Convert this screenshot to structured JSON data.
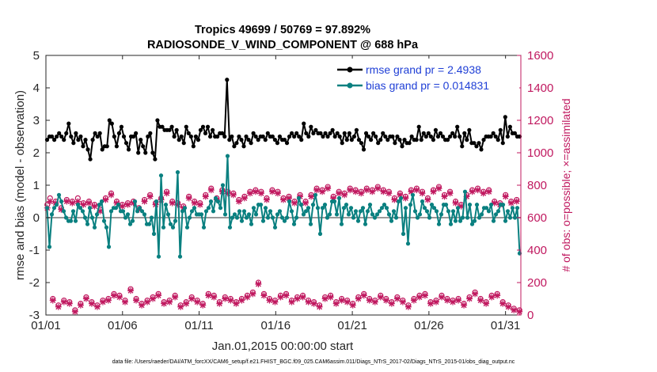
{
  "chart_data": {
    "type": "line",
    "title_line1": "Tropics 49699 / 50769 = 97.892%",
    "title_line2": "RADIOSONDE_V_WIND_COMPONENT @ 688 hPa",
    "xlabel": "Jan.01,2015 00:00:00 start",
    "ylabel_left": "rmse and bias (model - observation)",
    "ylabel_right": "# of obs: o=possible; ×=assimilated",
    "xlim": [
      0,
      31
    ],
    "ylim": [
      -3,
      5
    ],
    "ylim_right": [
      0,
      1600
    ],
    "x_ticks": [
      {
        "value": 0,
        "label": "01/01"
      },
      {
        "value": 5,
        "label": "01/06"
      },
      {
        "value": 10,
        "label": "01/11"
      },
      {
        "value": 15,
        "label": "01/16"
      },
      {
        "value": 20,
        "label": "01/21"
      },
      {
        "value": 25,
        "label": "01/26"
      },
      {
        "value": 30,
        "label": "01/31"
      }
    ],
    "y_ticks_left": [
      "-3",
      "-2",
      "-1",
      "0",
      "1",
      "2",
      "3",
      "4",
      "5"
    ],
    "y_ticks_right": [
      "0",
      "200",
      "400",
      "600",
      "800",
      "1000",
      "1200",
      "1400",
      "1600"
    ],
    "legend": [
      {
        "label": "rmse grand pr = 2.4938",
        "color": "#000000"
      },
      {
        "label": "bias grand pr = 0.014831",
        "color": "#0a8080"
      }
    ],
    "series": [
      {
        "name": "rmse",
        "color": "#000000",
        "axis": "left",
        "values": [
          2.4,
          2.5,
          2.5,
          2.4,
          2.5,
          2.6,
          2.5,
          2.4,
          2.6,
          2.9,
          2.5,
          2.3,
          2.6,
          2.4,
          2.5,
          2.2,
          2.4,
          2.1,
          1.8,
          2.4,
          2.6,
          2.5,
          2.6,
          2.1,
          2.2,
          2.2,
          3.0,
          2.9,
          2.5,
          2.2,
          2.6,
          2.8,
          2.5,
          2.3,
          2.1,
          2.5,
          2.5,
          2.6,
          2.0,
          2.4,
          2.2,
          2.0,
          2.5,
          2.6,
          2.0,
          1.8,
          3.0,
          2.8,
          2.8,
          2.7,
          2.7,
          2.7,
          2.8,
          2.5,
          2.7,
          2.4,
          2.5,
          2.3,
          2.8,
          2.6,
          2.5,
          2.2,
          2.5,
          2.4,
          2.7,
          2.8,
          2.6,
          2.8,
          2.5,
          2.7,
          2.5,
          2.5,
          2.6,
          2.6,
          2.5,
          4.25,
          2.4,
          2.5,
          2.2,
          2.3,
          2.5,
          2.4,
          2.2,
          2.5,
          2.4,
          2.3,
          2.6,
          2.5,
          2.4,
          2.5,
          2.5,
          2.4,
          2.6,
          2.5,
          2.5,
          2.4,
          2.3,
          2.5,
          2.4,
          2.4,
          2.3,
          2.5,
          2.6,
          2.5,
          2.6,
          2.5,
          2.4,
          2.9,
          2.6,
          2.5,
          2.8,
          2.6,
          2.7,
          2.6,
          2.6,
          2.5,
          2.6,
          2.5,
          2.6,
          2.7,
          2.5,
          2.6,
          2.5,
          2.3,
          2.6,
          2.4,
          2.6,
          2.4,
          2.5,
          2.7,
          2.4,
          2.3,
          2.1,
          2.6,
          2.5,
          2.4,
          2.6,
          2.5,
          2.3,
          2.4,
          2.6,
          2.5,
          2.4,
          2.5,
          2.5,
          2.3,
          2.5,
          2.4,
          2.2,
          2.4,
          2.3,
          2.3,
          2.5,
          2.4,
          2.4,
          2.8,
          2.4,
          2.6,
          2.5,
          2.6,
          2.5,
          2.4,
          2.7,
          2.5,
          2.6,
          2.5,
          2.4,
          2.4,
          2.5,
          2.6,
          2.5,
          2.8,
          2.5,
          2.2,
          2.6,
          2.4,
          2.7,
          2.3,
          2.3,
          2.2,
          2.3,
          2.1,
          2.4,
          2.5,
          2.5,
          2.5,
          2.6,
          2.5,
          2.4,
          2.7,
          2.3,
          3.1,
          2.5,
          2.8,
          2.6,
          2.6,
          2.5,
          2.5
        ]
      },
      {
        "name": "bias",
        "color": "#0a8080",
        "axis": "left",
        "values": [
          0.3,
          -0.9,
          0.1,
          0.3,
          0.4,
          0.7,
          0.5,
          0.2,
          0.0,
          -0.1,
          -0.1,
          0.2,
          -0.1,
          0.4,
          0.3,
          0.2,
          0.0,
          -0.2,
          0.3,
          0.0,
          -0.3,
          0.1,
          0.4,
          0.5,
          -0.1,
          -0.3,
          -0.9,
          0.2,
          0.3,
          0.3,
          0.4,
          0.2,
          0.2,
          0.0,
          0.1,
          -0.2,
          -0.1,
          0.5,
          0.2,
          0.3,
          0.2,
          0.1,
          -0.2,
          -0.2,
          0.0,
          -0.5,
          0.5,
          -1.2,
          1.3,
          -0.3,
          0.4,
          0.1,
          -0.2,
          -0.3,
          -0.1,
          1.4,
          -1.2,
          0.2,
          0.3,
          -0.3,
          0.0,
          0.2,
          0.3,
          0.1,
          0.1,
          0.1,
          -0.3,
          0.2,
          0.3,
          0.5,
          0.2,
          0.6,
          0.5,
          0.3,
          1.0,
          0.1,
          1.9,
          -0.3,
          0.0,
          0.1,
          0.0,
          0.2,
          -0.1,
          0.2,
          0.0,
          0.1,
          -0.2,
          0.3,
          0.1,
          0.4,
          0.4,
          -0.1,
          0.3,
          0.0,
          0.2,
          0.0,
          -0.3,
          0.1,
          0.2,
          0.0,
          -0.1,
          0.0,
          0.5,
          0.2,
          -0.2,
          0.0,
          0.6,
          0.4,
          0.1,
          0.2,
          0.3,
          -0.2,
          0.4,
          0.7,
          0.3,
          -0.5,
          0.3,
          0.4,
          0.0,
          0.1,
          0.5,
          0.5,
          0.1,
          0.6,
          -0.2,
          0.3,
          0.4,
          0.1,
          0.3,
          0.0,
          0.2,
          -0.1,
          0.2,
          0.3,
          -0.2,
          0.2,
          0.4,
          0.1,
          0.0,
          0.1,
          0.2,
          0.3,
          0.4,
          0.3,
          0.1,
          -0.1,
          0.2,
          0.0,
          0.5,
          0.6,
          -0.5,
          0.3,
          -0.8,
          0.4,
          0.7,
          0.2,
          0.0,
          0.1,
          0.5,
          0.3,
          0.2,
          0.0,
          0.4,
          0.3,
          0.2,
          -0.2,
          0.1,
          0.4,
          0.4,
          0.2,
          -0.2,
          0.2,
          -0.1,
          0.3,
          -0.1,
          0.0,
          0.8,
          0.0,
          0.4,
          -0.2,
          -0.1,
          0.4,
          0.0,
          0.1,
          0.3,
          0.3,
          0.2,
          0.4,
          -0.1,
          0.1,
          0.2,
          0.4,
          0.4,
          -0.1,
          0.2,
          0.0,
          0.3,
          0.0,
          0.3,
          -1.1
        ]
      },
      {
        "name": "obs possible",
        "marker": "o",
        "color": "#c0185f",
        "axis": "right",
        "values": [
          680,
          720,
          100,
          700,
          60,
          660,
          90,
          710,
          80,
          700,
          30,
          720,
          70,
          690,
          110,
          700,
          80,
          680,
          60,
          650,
          90,
          720,
          100,
          750,
          130,
          700,
          120,
          680,
          90,
          690,
          160,
          700,
          100,
          660,
          70,
          710,
          90,
          740,
          110,
          690,
          130,
          720,
          80,
          760,
          90,
          700,
          120,
          690,
          60,
          670,
          80,
          730,
          110,
          700,
          90,
          690,
          70,
          740,
          130,
          780,
          120,
          720,
          80,
          770,
          110,
          760,
          100,
          750,
          80,
          710,
          100,
          730,
          120,
          760,
          140,
          770,
          200,
          760,
          130,
          720,
          100,
          770,
          90,
          760,
          120,
          720,
          130,
          730,
          90,
          700,
          110,
          740,
          120,
          700,
          90,
          740,
          80,
          780,
          60,
          770,
          110,
          790,
          120,
          730,
          80,
          760,
          100,
          750,
          90,
          780,
          70,
          770,
          110,
          760,
          130,
          780,
          100,
          770,
          90,
          790,
          120,
          770,
          100,
          760,
          80,
          720,
          110,
          750,
          90,
          730,
          60,
          770,
          100,
          780,
          120,
          760,
          130,
          720,
          80,
          770,
          90,
          790,
          120,
          740,
          100,
          760,
          90,
          700,
          100,
          680,
          70,
          740,
          110,
          770,
          140,
          780,
          100,
          760,
          80,
          770,
          120,
          700,
          130,
          690,
          80,
          740,
          60,
          700,
          40,
          710,
          30
        ]
      },
      {
        "name": "obs assimilated",
        "marker": "x",
        "color": "#c0185f",
        "axis": "right",
        "values": [
          660,
          700,
          90,
          690,
          50,
          650,
          80,
          700,
          70,
          690,
          20,
          700,
          60,
          680,
          100,
          690,
          70,
          670,
          50,
          640,
          80,
          710,
          90,
          740,
          120,
          690,
          110,
          670,
          80,
          680,
          150,
          690,
          90,
          650,
          60,
          700,
          80,
          730,
          100,
          680,
          120,
          710,
          70,
          750,
          80,
          690,
          110,
          680,
          50,
          660,
          70,
          720,
          100,
          690,
          80,
          680,
          60,
          730,
          120,
          770,
          110,
          710,
          70,
          760,
          100,
          750,
          90,
          740,
          70,
          700,
          90,
          720,
          110,
          750,
          130,
          760,
          190,
          750,
          120,
          710,
          90,
          760,
          80,
          750,
          110,
          710,
          120,
          720,
          80,
          690,
          100,
          730,
          110,
          690,
          80,
          730,
          70,
          770,
          50,
          760,
          100,
          780,
          110,
          720,
          70,
          750,
          90,
          740,
          80,
          770,
          60,
          760,
          100,
          750,
          120,
          770,
          90,
          760,
          80,
          780,
          110,
          760,
          90,
          750,
          70,
          710,
          100,
          740,
          80,
          720,
          50,
          760,
          90,
          770,
          110,
          750,
          120,
          710,
          70,
          760,
          80,
          780,
          110,
          730,
          90,
          750,
          80,
          690,
          90,
          670,
          60,
          730,
          100,
          760,
          130,
          770,
          90,
          750,
          70,
          760,
          110,
          690,
          120,
          680,
          70,
          730,
          50,
          690,
          30,
          700,
          20
        ]
      }
    ]
  },
  "footer": "data file: /Users/raeder/DAI/ATM_forcXX/CAM6_setup/f.e21.FHIST_BGC.f09_025.CAM6assim.011/Diags_NTrS_2017-02/Diags_NTrS_2015-01/obs_diag_output.nc"
}
